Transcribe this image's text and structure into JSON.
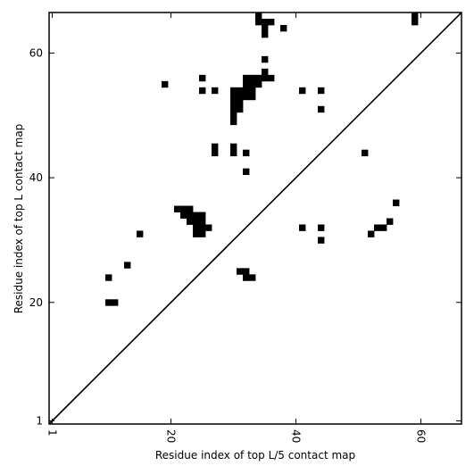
{
  "chart_data": {
    "type": "heatmap",
    "subtype": "contact-map",
    "title": "",
    "xlabel": "Residue index of top L/5 contact map",
    "ylabel": "Residue index of top L contact map",
    "xlim": [
      0.5,
      66.5
    ],
    "ylim": [
      0.5,
      66.5
    ],
    "x_ticks": [
      {
        "value": 1,
        "label": "1"
      },
      {
        "value": 20,
        "label": "20"
      },
      {
        "value": 40,
        "label": "40"
      },
      {
        "value": 60,
        "label": "60"
      }
    ],
    "y_ticks": [
      {
        "value": 1,
        "label": "1"
      },
      {
        "value": 20,
        "label": "20"
      },
      {
        "value": 40,
        "label": "40"
      },
      {
        "value": 60,
        "label": "60"
      }
    ],
    "x_tick_rotation_deg": -90,
    "grid": false,
    "legend": "none",
    "diagonal": {
      "from": [
        1,
        1
      ],
      "to": [
        66,
        66
      ],
      "color": "#000000"
    },
    "cell_color": "#000000",
    "background_color": "#ffffff",
    "contacts": [
      [
        10,
        20
      ],
      [
        11,
        20
      ],
      [
        10,
        24
      ],
      [
        13,
        26
      ],
      [
        15,
        31
      ],
      [
        21,
        35
      ],
      [
        22,
        35
      ],
      [
        23,
        35
      ],
      [
        22,
        34
      ],
      [
        23,
        34
      ],
      [
        24,
        34
      ],
      [
        25,
        34
      ],
      [
        23,
        33
      ],
      [
        24,
        33
      ],
      [
        25,
        33
      ],
      [
        24,
        32
      ],
      [
        25,
        32
      ],
      [
        26,
        32
      ],
      [
        24,
        31
      ],
      [
        25,
        31
      ],
      [
        19,
        55
      ],
      [
        25,
        56
      ],
      [
        25,
        54
      ],
      [
        27,
        54
      ],
      [
        27,
        45
      ],
      [
        27,
        44
      ],
      [
        30,
        45
      ],
      [
        30,
        44
      ],
      [
        32,
        44
      ],
      [
        32,
        41
      ],
      [
        30,
        54
      ],
      [
        31,
        54
      ],
      [
        32,
        54
      ],
      [
        33,
        54
      ],
      [
        30,
        53
      ],
      [
        31,
        53
      ],
      [
        32,
        53
      ],
      [
        33,
        53
      ],
      [
        30,
        52
      ],
      [
        31,
        52
      ],
      [
        30,
        51
      ],
      [
        31,
        51
      ],
      [
        30,
        50
      ],
      [
        30,
        49
      ],
      [
        32,
        56
      ],
      [
        33,
        56
      ],
      [
        34,
        56
      ],
      [
        35,
        56
      ],
      [
        36,
        56
      ],
      [
        32,
        55
      ],
      [
        33,
        55
      ],
      [
        34,
        55
      ],
      [
        35,
        57
      ],
      [
        35,
        59
      ],
      [
        34,
        66
      ],
      [
        34,
        65
      ],
      [
        35,
        65
      ],
      [
        36,
        65
      ],
      [
        35,
        64
      ],
      [
        35,
        63
      ],
      [
        38,
        64
      ],
      [
        31,
        25
      ],
      [
        32,
        25
      ],
      [
        32,
        24
      ],
      [
        33,
        24
      ],
      [
        41,
        54
      ],
      [
        44,
        54
      ],
      [
        44,
        51
      ],
      [
        41,
        32
      ],
      [
        44,
        32
      ],
      [
        44,
        30
      ],
      [
        51,
        44
      ],
      [
        52,
        31
      ],
      [
        53,
        32
      ],
      [
        54,
        32
      ],
      [
        55,
        33
      ],
      [
        56,
        36
      ],
      [
        59,
        66
      ],
      [
        59,
        65
      ]
    ]
  }
}
